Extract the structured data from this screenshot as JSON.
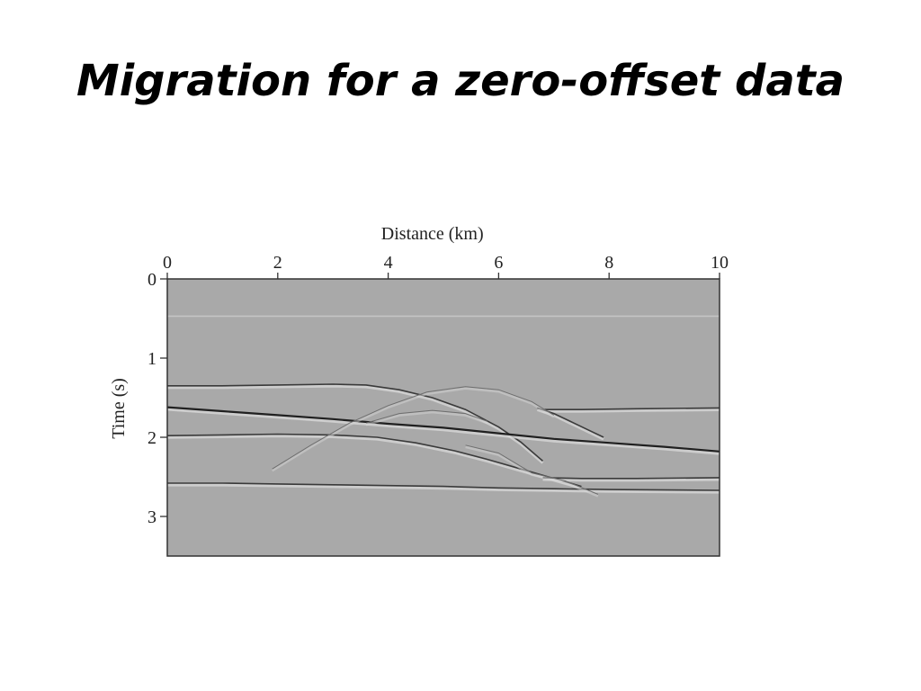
{
  "slide": {
    "title": "Migration for a zero-offset data"
  },
  "chart_data": {
    "type": "seismic-section",
    "xlabel": "Distance (km)",
    "ylabel": "Time (s)",
    "xlim": [
      0,
      10
    ],
    "ylim": [
      0,
      3.5
    ],
    "x_ticks": [
      0,
      2,
      4,
      6,
      8,
      10
    ],
    "y_ticks": [
      0,
      1,
      2,
      3
    ],
    "x_axis_position": "top",
    "y_axis_inverted": true,
    "background_color": "#a9a9a9",
    "reflectors": [
      {
        "name": "",
        "points": [
          [
            0,
            0.47
          ],
          [
            10,
            0.47
          ]
        ],
        "style": "faint-light"
      },
      {
        "name": "",
        "points": [
          [
            0,
            1.35
          ],
          [
            1,
            1.35
          ],
          [
            2,
            1.34
          ],
          [
            3,
            1.33
          ],
          [
            3.6,
            1.34
          ],
          [
            4.2,
            1.4
          ],
          [
            4.8,
            1.5
          ],
          [
            5.4,
            1.65
          ],
          [
            6,
            1.87
          ],
          [
            6.4,
            2.06
          ],
          [
            6.8,
            2.3
          ]
        ],
        "style": "dark"
      },
      {
        "name": "",
        "points": [
          [
            0,
            1.62
          ],
          [
            1,
            1.67
          ],
          [
            2,
            1.72
          ],
          [
            3,
            1.77
          ],
          [
            4,
            1.83
          ],
          [
            5,
            1.88
          ],
          [
            6,
            1.95
          ],
          [
            7,
            2.02
          ],
          [
            8,
            2.07
          ],
          [
            9,
            2.12
          ],
          [
            10,
            2.18
          ]
        ],
        "style": "dark-strong"
      },
      {
        "name": "",
        "points": [
          [
            0,
            1.98
          ],
          [
            1,
            1.97
          ],
          [
            2,
            1.96
          ],
          [
            3,
            1.97
          ],
          [
            3.8,
            2.0
          ],
          [
            4.5,
            2.07
          ],
          [
            5.2,
            2.17
          ],
          [
            5.8,
            2.28
          ],
          [
            6.4,
            2.4
          ],
          [
            6.9,
            2.5
          ],
          [
            7.3,
            2.58
          ],
          [
            7.5,
            2.62
          ]
        ],
        "style": "dark"
      },
      {
        "name": "",
        "points": [
          [
            6.8,
            2.51
          ],
          [
            7.5,
            2.52
          ],
          [
            8.5,
            2.52
          ],
          [
            10,
            2.51
          ]
        ],
        "style": "dark"
      },
      {
        "name": "",
        "points": [
          [
            0,
            2.58
          ],
          [
            1,
            2.58
          ],
          [
            2,
            2.59
          ],
          [
            3,
            2.6
          ],
          [
            4,
            2.61
          ],
          [
            5,
            2.62
          ],
          [
            6,
            2.64
          ],
          [
            7,
            2.65
          ],
          [
            8,
            2.66
          ],
          [
            10,
            2.67
          ]
        ],
        "style": "dark"
      },
      {
        "name": "",
        "points": [
          [
            6.8,
            1.65
          ],
          [
            7.5,
            1.65
          ],
          [
            8.5,
            1.64
          ],
          [
            10,
            1.63
          ]
        ],
        "style": "dark"
      },
      {
        "name": "",
        "points": [
          [
            6.7,
            1.63
          ],
          [
            7.0,
            1.7
          ],
          [
            7.3,
            1.8
          ],
          [
            7.6,
            1.9
          ],
          [
            7.9,
            2.0
          ]
        ],
        "style": "dark"
      }
    ],
    "diffraction_arcs": [
      {
        "name": "",
        "points": [
          [
            1.9,
            2.4
          ],
          [
            2.6,
            2.1
          ],
          [
            3.3,
            1.82
          ],
          [
            4.0,
            1.6
          ],
          [
            4.7,
            1.43
          ],
          [
            5.4,
            1.36
          ],
          [
            6.0,
            1.4
          ],
          [
            6.6,
            1.55
          ],
          [
            7.0,
            1.72
          ]
        ],
        "style": "faint"
      },
      {
        "name": "",
        "points": [
          [
            3.6,
            1.82
          ],
          [
            4.2,
            1.7
          ],
          [
            4.8,
            1.66
          ],
          [
            5.4,
            1.7
          ],
          [
            5.8,
            1.8
          ]
        ],
        "style": "faint"
      },
      {
        "name": "",
        "points": [
          [
            5.4,
            2.1
          ],
          [
            6.0,
            2.2
          ],
          [
            6.6,
            2.45
          ],
          [
            7.2,
            2.55
          ],
          [
            7.8,
            2.72
          ]
        ],
        "style": "faint"
      }
    ]
  }
}
